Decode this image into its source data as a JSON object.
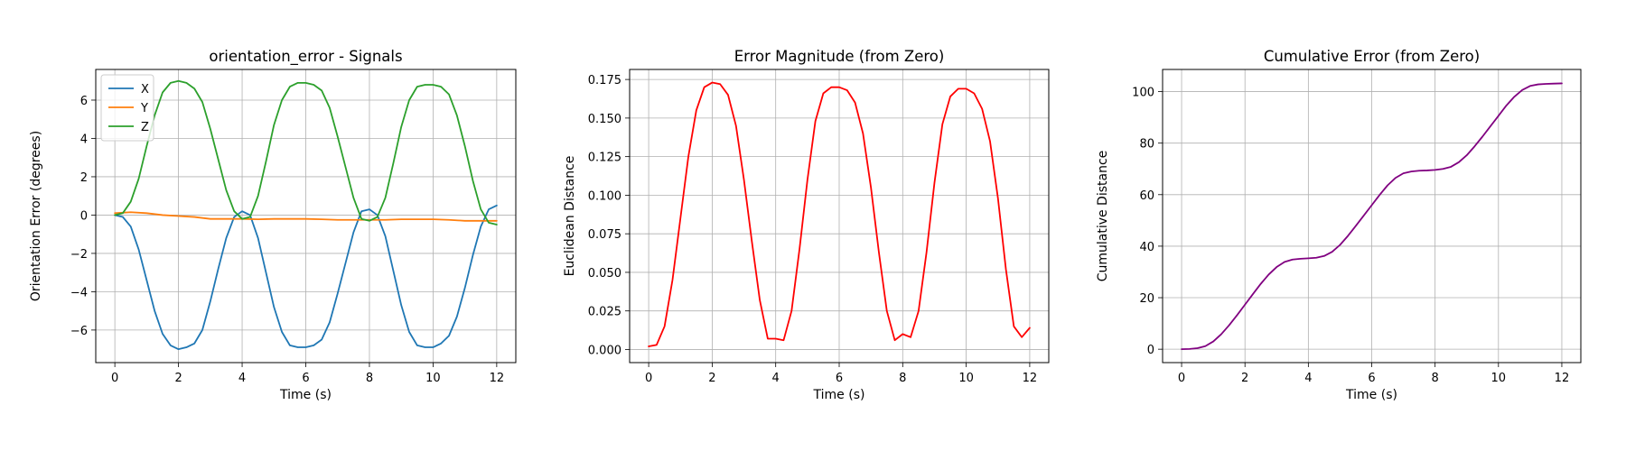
{
  "chart_data": [
    {
      "type": "line",
      "title": "orientation_error - Signals",
      "xlabel": "Time (s)",
      "ylabel": "Orientation Error (degrees)",
      "xlim": [
        -0.6,
        12.6
      ],
      "ylim": [
        -7.7,
        7.6
      ],
      "xticks": [
        0,
        2,
        4,
        6,
        8,
        10,
        12
      ],
      "yticks": [
        -6,
        -4,
        -2,
        0,
        2,
        4,
        6
      ],
      "ytick_labels": [
        "−6",
        "−4",
        "−2",
        "0",
        "2",
        "4",
        "6"
      ],
      "grid": true,
      "legend": "upper-left",
      "series": [
        {
          "name": "X",
          "color": "#1f77b4",
          "x": [
            0,
            0.25,
            0.5,
            0.75,
            1,
            1.25,
            1.5,
            1.75,
            2,
            2.25,
            2.5,
            2.75,
            3,
            3.25,
            3.5,
            3.75,
            4,
            4.25,
            4.5,
            4.75,
            5,
            5.25,
            5.5,
            5.75,
            6,
            6.25,
            6.5,
            6.75,
            7,
            7.25,
            7.5,
            7.75,
            8,
            8.25,
            8.5,
            8.75,
            9,
            9.25,
            9.5,
            9.75,
            10,
            10.25,
            10.5,
            10.75,
            11,
            11.25,
            11.5,
            11.75,
            12
          ],
          "y": [
            0.0,
            -0.1,
            -0.6,
            -1.8,
            -3.4,
            -5.0,
            -6.2,
            -6.8,
            -7.0,
            -6.9,
            -6.7,
            -6.0,
            -4.5,
            -2.8,
            -1.2,
            -0.1,
            0.2,
            0.0,
            -1.2,
            -3.0,
            -4.8,
            -6.1,
            -6.8,
            -6.9,
            -6.9,
            -6.8,
            -6.5,
            -5.6,
            -4.1,
            -2.5,
            -0.9,
            0.2,
            0.3,
            0.0,
            -1.1,
            -2.9,
            -4.7,
            -6.1,
            -6.8,
            -6.9,
            -6.9,
            -6.7,
            -6.3,
            -5.3,
            -3.8,
            -2.1,
            -0.6,
            0.3,
            0.5
          ]
        },
        {
          "name": "Y",
          "color": "#ff7f0e",
          "x": [
            0,
            0.5,
            1,
            1.5,
            2,
            2.5,
            3,
            3.5,
            4,
            4.5,
            5,
            5.5,
            6,
            6.5,
            7,
            7.5,
            8,
            8.5,
            9,
            9.5,
            10,
            10.5,
            11,
            11.5,
            12
          ],
          "y": [
            0.1,
            0.15,
            0.1,
            0.0,
            -0.05,
            -0.1,
            -0.2,
            -0.2,
            -0.2,
            -0.22,
            -0.2,
            -0.2,
            -0.2,
            -0.22,
            -0.25,
            -0.25,
            -0.25,
            -0.25,
            -0.22,
            -0.22,
            -0.22,
            -0.25,
            -0.3,
            -0.3,
            -0.3
          ]
        },
        {
          "name": "Z",
          "color": "#2ca02c",
          "x": [
            0,
            0.25,
            0.5,
            0.75,
            1,
            1.25,
            1.5,
            1.75,
            2,
            2.25,
            2.5,
            2.75,
            3,
            3.25,
            3.5,
            3.75,
            4,
            4.25,
            4.5,
            4.75,
            5,
            5.25,
            5.5,
            5.75,
            6,
            6.25,
            6.5,
            6.75,
            7,
            7.25,
            7.5,
            7.75,
            8,
            8.25,
            8.5,
            8.75,
            9,
            9.25,
            9.5,
            9.75,
            10,
            10.25,
            10.5,
            10.75,
            11,
            11.25,
            11.5,
            11.75,
            12
          ],
          "y": [
            0.0,
            0.1,
            0.7,
            1.9,
            3.6,
            5.2,
            6.4,
            6.9,
            7.0,
            6.9,
            6.6,
            5.9,
            4.5,
            2.9,
            1.3,
            0.2,
            -0.2,
            -0.1,
            1.0,
            2.8,
            4.7,
            6.0,
            6.7,
            6.9,
            6.9,
            6.8,
            6.5,
            5.6,
            4.1,
            2.5,
            0.9,
            -0.2,
            -0.3,
            -0.1,
            0.9,
            2.7,
            4.6,
            6.0,
            6.7,
            6.8,
            6.8,
            6.7,
            6.3,
            5.2,
            3.6,
            1.8,
            0.3,
            -0.4,
            -0.5
          ]
        }
      ]
    },
    {
      "type": "line",
      "title": "Error Magnitude (from Zero)",
      "xlabel": "Time (s)",
      "ylabel": "Euclidean Distance",
      "xlim": [
        -0.6,
        12.6
      ],
      "ylim": [
        -0.0085,
        0.1815
      ],
      "xticks": [
        0,
        2,
        4,
        6,
        8,
        10,
        12
      ],
      "yticks": [
        0.0,
        0.025,
        0.05,
        0.075,
        0.1,
        0.125,
        0.15,
        0.175
      ],
      "ytick_labels": [
        "0.000",
        "0.025",
        "0.050",
        "0.075",
        "0.100",
        "0.125",
        "0.150",
        "0.175"
      ],
      "grid": true,
      "series": [
        {
          "color": "#ff0000",
          "x": [
            0,
            0.25,
            0.5,
            0.75,
            1,
            1.25,
            1.5,
            1.75,
            2,
            2.25,
            2.5,
            2.75,
            3,
            3.25,
            3.5,
            3.75,
            4,
            4.25,
            4.5,
            4.75,
            5,
            5.25,
            5.5,
            5.75,
            6,
            6.25,
            6.5,
            6.75,
            7,
            7.25,
            7.5,
            7.75,
            8,
            8.25,
            8.5,
            8.75,
            9,
            9.25,
            9.5,
            9.75,
            10,
            10.25,
            10.5,
            10.75,
            11,
            11.25,
            11.5,
            11.75,
            12
          ],
          "y": [
            0.002,
            0.003,
            0.015,
            0.045,
            0.085,
            0.125,
            0.155,
            0.17,
            0.173,
            0.172,
            0.165,
            0.145,
            0.11,
            0.07,
            0.032,
            0.007,
            0.007,
            0.006,
            0.025,
            0.065,
            0.11,
            0.148,
            0.166,
            0.17,
            0.17,
            0.168,
            0.16,
            0.14,
            0.105,
            0.063,
            0.025,
            0.006,
            0.01,
            0.008,
            0.025,
            0.063,
            0.108,
            0.146,
            0.164,
            0.169,
            0.169,
            0.166,
            0.156,
            0.135,
            0.098,
            0.052,
            0.015,
            0.008,
            0.014
          ]
        }
      ]
    },
    {
      "type": "line",
      "title": "Cumulative Error (from Zero)",
      "xlabel": "Time (s)",
      "ylabel": "Cumulative Distance",
      "xlim": [
        -0.6,
        12.6
      ],
      "ylim": [
        -5.2,
        108.6
      ],
      "xticks": [
        0,
        2,
        4,
        6,
        8,
        10,
        12
      ],
      "yticks": [
        0,
        20,
        40,
        60,
        80,
        100
      ],
      "ytick_labels": [
        "0",
        "20",
        "40",
        "60",
        "80",
        "100"
      ],
      "grid": true,
      "series": [
        {
          "color": "#800080",
          "x": [
            0,
            0.25,
            0.5,
            0.75,
            1,
            1.25,
            1.5,
            1.75,
            2,
            2.25,
            2.5,
            2.75,
            3,
            3.25,
            3.5,
            3.75,
            4,
            4.25,
            4.5,
            4.75,
            5,
            5.25,
            5.5,
            5.75,
            6,
            6.25,
            6.5,
            6.75,
            7,
            7.25,
            7.5,
            7.75,
            8,
            8.25,
            8.5,
            8.75,
            9,
            9.25,
            9.5,
            9.75,
            10,
            10.25,
            10.5,
            10.75,
            11,
            11.25,
            11.5,
            11.75,
            12
          ],
          "y": [
            0.0,
            0.1,
            0.4,
            1.2,
            3.0,
            5.8,
            9.3,
            13.2,
            17.3,
            21.4,
            25.4,
            29.0,
            31.9,
            33.9,
            34.8,
            35.1,
            35.3,
            35.5,
            36.2,
            37.8,
            40.5,
            44.0,
            47.9,
            51.9,
            55.9,
            59.9,
            63.6,
            66.5,
            68.3,
            69.0,
            69.3,
            69.4,
            69.6,
            70.0,
            70.8,
            72.6,
            75.3,
            78.8,
            82.6,
            86.6,
            90.6,
            94.6,
            98.0,
            100.6,
            102.2,
            102.8,
            103.0,
            103.1,
            103.2
          ]
        }
      ]
    }
  ]
}
